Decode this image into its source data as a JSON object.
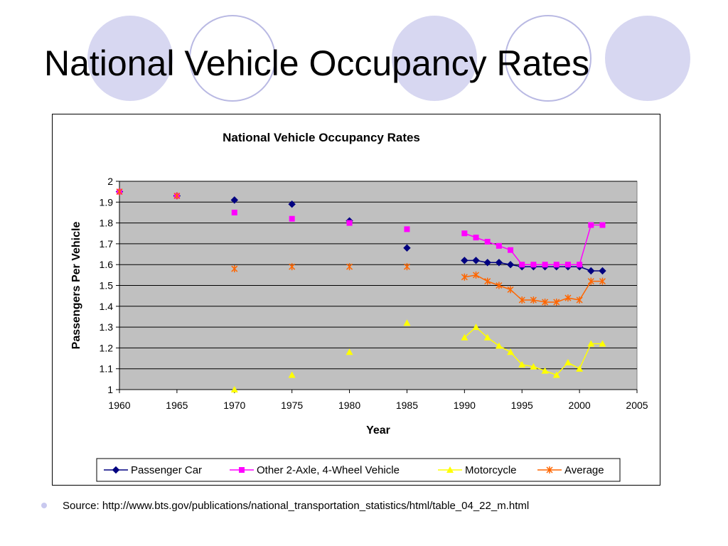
{
  "slide": {
    "title": "National Vehicle Occupancy Rates",
    "source_text": "Source: http://www.bts.gov/publications/national_transportation_statistics/html/table_04_22_m.html"
  },
  "colors": {
    "plot_bg": "#c0c0c0",
    "gridline": "#000000",
    "deco_fill": "#d7d7f1",
    "deco_stroke": "#b9b9e3"
  },
  "chart_data": {
    "type": "line",
    "title": "National Vehicle Occupancy Rates",
    "xlabel": "Year",
    "ylabel": "Passengers Per Vehicle",
    "xlim": [
      1960,
      2005
    ],
    "ylim": [
      1,
      2
    ],
    "xticks": [
      "1960",
      "1965",
      "1970",
      "1975",
      "1980",
      "1985",
      "1990",
      "1995",
      "2000",
      "2005"
    ],
    "yticks": [
      "1",
      "1.1",
      "1.2",
      "1.3",
      "1.4",
      "1.5",
      "1.6",
      "1.7",
      "1.8",
      "1.9",
      "2"
    ],
    "grid": "horizontal",
    "legend_position": "bottom",
    "series": [
      {
        "name": "Passenger Car",
        "color": "#000080",
        "marker": "diamond",
        "points": [
          [
            1960,
            1.95
          ],
          [
            1965,
            1.93
          ],
          [
            1970,
            1.91
          ],
          [
            1975,
            1.89
          ],
          [
            1980,
            1.81
          ],
          [
            1985,
            1.68
          ],
          [
            1990,
            1.62
          ],
          [
            1991,
            1.62
          ],
          [
            1992,
            1.61
          ],
          [
            1993,
            1.61
          ],
          [
            1994,
            1.6
          ],
          [
            1995,
            1.59
          ],
          [
            1996,
            1.59
          ],
          [
            1997,
            1.59
          ],
          [
            1998,
            1.59
          ],
          [
            1999,
            1.59
          ],
          [
            2000,
            1.59
          ],
          [
            2001,
            1.57
          ],
          [
            2002,
            1.57
          ]
        ]
      },
      {
        "name": "Other 2-Axle, 4-Wheel Vehicle",
        "color": "#ff00ff",
        "marker": "square",
        "points": [
          [
            1960,
            1.95
          ],
          [
            1965,
            1.93
          ],
          [
            1970,
            1.85
          ],
          [
            1975,
            1.82
          ],
          [
            1980,
            1.8
          ],
          [
            1985,
            1.77
          ],
          [
            1990,
            1.75
          ],
          [
            1991,
            1.73
          ],
          [
            1992,
            1.71
          ],
          [
            1993,
            1.69
          ],
          [
            1994,
            1.67
          ],
          [
            1995,
            1.6
          ],
          [
            1996,
            1.6
          ],
          [
            1997,
            1.6
          ],
          [
            1998,
            1.6
          ],
          [
            1999,
            1.6
          ],
          [
            2000,
            1.6
          ],
          [
            2001,
            1.79
          ],
          [
            2002,
            1.79
          ]
        ]
      },
      {
        "name": "Motorcycle",
        "color": "#ffff00",
        "marker": "triangle",
        "points": [
          [
            1970,
            1.0
          ],
          [
            1975,
            1.07
          ],
          [
            1980,
            1.18
          ],
          [
            1985,
            1.32
          ],
          [
            1990,
            1.25
          ],
          [
            1991,
            1.3
          ],
          [
            1992,
            1.25
          ],
          [
            1993,
            1.21
          ],
          [
            1994,
            1.18
          ],
          [
            1995,
            1.12
          ],
          [
            1996,
            1.11
          ],
          [
            1997,
            1.09
          ],
          [
            1998,
            1.07
          ],
          [
            1999,
            1.13
          ],
          [
            2000,
            1.1
          ],
          [
            2001,
            1.22
          ],
          [
            2002,
            1.22
          ]
        ]
      },
      {
        "name": "Average",
        "color": "#ff6600",
        "marker": "asterisk",
        "points": [
          [
            1960,
            1.95
          ],
          [
            1965,
            1.93
          ],
          [
            1970,
            1.58
          ],
          [
            1975,
            1.59
          ],
          [
            1980,
            1.59
          ],
          [
            1985,
            1.59
          ],
          [
            1990,
            1.54
          ],
          [
            1991,
            1.55
          ],
          [
            1992,
            1.52
          ],
          [
            1993,
            1.5
          ],
          [
            1994,
            1.48
          ],
          [
            1995,
            1.43
          ],
          [
            1996,
            1.43
          ],
          [
            1997,
            1.42
          ],
          [
            1998,
            1.42
          ],
          [
            1999,
            1.44
          ],
          [
            2000,
            1.43
          ],
          [
            2001,
            1.52
          ],
          [
            2002,
            1.52
          ]
        ]
      }
    ]
  }
}
